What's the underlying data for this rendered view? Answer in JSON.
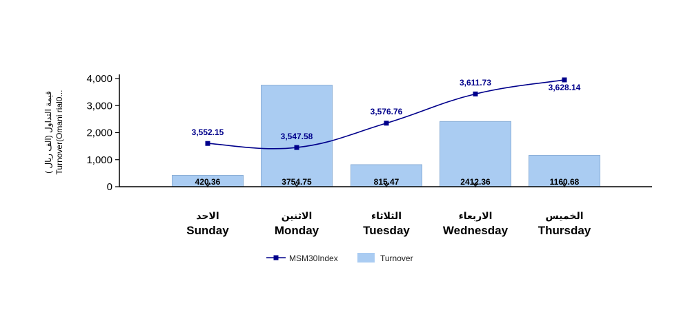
{
  "chart_data": {
    "type": "bar",
    "ylabel_lines": [
      "( قيمة التداول (الف ريال",
      "Turnover(Omani rial0..."
    ],
    "ylim": [
      0,
      4000
    ],
    "yticks": [
      "0",
      "1,000",
      "2,000",
      "3,000",
      "4,000"
    ],
    "ytick_values": [
      0,
      1000,
      2000,
      3000,
      4000
    ],
    "categories_ar": [
      "الاحد",
      "الاثنين",
      "الثلاثاء",
      "الاربعاء",
      "الخميس"
    ],
    "categories": [
      "Sunday",
      "Monday",
      "Tuesday",
      "Wednesday",
      "Thursday"
    ],
    "series": [
      {
        "name": "Turnover",
        "type": "bar",
        "color": "#aaccf2",
        "values": [
          420.36,
          3754.75,
          815.47,
          2412.36,
          1160.68
        ],
        "labels": [
          "420.36",
          "3754.75",
          "815.47",
          "2412.36",
          "1160.68"
        ]
      },
      {
        "name": "MSM30Index",
        "type": "line",
        "color": "#00008b",
        "values": [
          3552.15,
          3547.58,
          3576.76,
          3611.73,
          3628.14
        ],
        "labels": [
          "3,552.15",
          "3,547.58",
          "3,576.76",
          "3,611.73",
          "3,628.14"
        ],
        "plotted_on_turnover_axis": [
          1600,
          1450,
          2350,
          3430,
          3950
        ]
      }
    ],
    "grid": false,
    "legend_position": "bottom"
  }
}
